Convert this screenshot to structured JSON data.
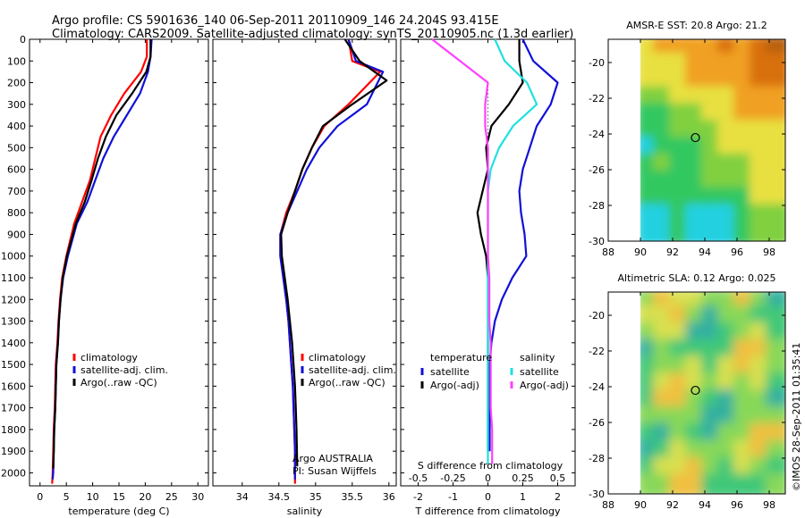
{
  "header": {
    "line1": "Argo profile: CS 5901636_140 06-Sep-2011 20110909_146 24.204S 93.415E",
    "line2": "Climatology: CARS2009. Satellite-adjusted climatology: synTS_20110905.nc (1.3d earlier)"
  },
  "colors": {
    "climatology": "#ff0000",
    "satellite": "#1010d8",
    "argo": "#000000",
    "sal_satellite": "#20e0e0",
    "sal_argo": "#ff40ff"
  },
  "depth_axis": {
    "ticks": [
      0,
      100,
      200,
      300,
      400,
      500,
      600,
      700,
      800,
      900,
      1000,
      1100,
      1200,
      1300,
      1400,
      1500,
      1600,
      1700,
      1800,
      1900,
      2000
    ],
    "range": [
      0,
      2060
    ],
    "grid": false
  },
  "chart_data": [
    {
      "type": "line",
      "id": "temperature",
      "xlabel": "temperature (deg C)",
      "xlim": [
        -2,
        32
      ],
      "xticks": [
        0,
        5,
        10,
        15,
        20,
        25,
        30
      ],
      "legend": [
        "climatology",
        "satellite-adj. clim.",
        "Argo(..raw -QC)"
      ],
      "series": [
        {
          "name": "climatology",
          "color": "#ff0000",
          "x": [
            20.3,
            20.3,
            19.2,
            16.0,
            13.5,
            11.5,
            10.5,
            9.5,
            8.0,
            6.5,
            5.0,
            4.2,
            3.8,
            3.5,
            3.3,
            3.0,
            2.9,
            2.8,
            2.6,
            2.5,
            2.4,
            2.3
          ],
          "y": [
            0,
            80,
            150,
            250,
            350,
            450,
            550,
            650,
            750,
            850,
            1000,
            1100,
            1200,
            1300,
            1400,
            1500,
            1600,
            1700,
            1800,
            1900,
            2000,
            2050
          ]
        },
        {
          "name": "satellite-adj. clim.",
          "color": "#1010d8",
          "x": [
            21.2,
            21.0,
            20.5,
            19.0,
            16.5,
            14.0,
            12.0,
            10.5,
            9.0,
            7.0,
            5.3,
            4.4,
            3.9,
            3.6,
            3.4,
            3.1,
            3.0,
            2.9,
            2.7,
            2.6,
            2.5,
            2.4
          ],
          "y": [
            0,
            80,
            150,
            250,
            350,
            450,
            550,
            650,
            750,
            850,
            1000,
            1100,
            1200,
            1300,
            1400,
            1500,
            1600,
            1700,
            1800,
            1900,
            2000,
            2030
          ]
        },
        {
          "name": "Argo(..raw -QC)",
          "color": "#000000",
          "x": [
            21.0,
            21.0,
            20.2,
            17.5,
            14.5,
            12.5,
            11.0,
            9.8,
            8.5,
            6.8,
            5.1,
            4.3,
            3.9,
            3.6,
            3.4,
            3.1,
            3.0,
            2.9,
            2.7,
            2.6,
            2.5
          ],
          "y": [
            0,
            80,
            150,
            250,
            350,
            450,
            550,
            650,
            750,
            850,
            1000,
            1100,
            1200,
            1300,
            1400,
            1500,
            1600,
            1700,
            1800,
            1900,
            1980
          ]
        }
      ]
    },
    {
      "type": "line",
      "id": "salinity",
      "xlabel": "salinity",
      "xlim": [
        33.6,
        36.1
      ],
      "xticks": [
        34,
        34.5,
        35,
        35.5,
        36
      ],
      "legend": [
        "climatology",
        "satellite-adj. clim.",
        "Argo(..raw -QC)"
      ],
      "annotation": [
        "Argo AUSTRALIA",
        "PI: Susan Wijffels"
      ],
      "series": [
        {
          "name": "climatology",
          "color": "#ff0000",
          "x": [
            35.45,
            35.5,
            35.88,
            35.45,
            35.12,
            34.95,
            34.82,
            34.72,
            34.6,
            34.52,
            34.52,
            34.56,
            34.6,
            34.63,
            34.65,
            34.67,
            34.69,
            34.7,
            34.71,
            34.72,
            34.72
          ],
          "y": [
            0,
            100,
            150,
            300,
            400,
            500,
            600,
            700,
            800,
            900,
            1000,
            1100,
            1200,
            1300,
            1400,
            1500,
            1600,
            1700,
            1800,
            1900,
            2050
          ]
        },
        {
          "name": "satellite-adj. clim.",
          "color": "#1010d8",
          "x": [
            35.45,
            35.55,
            35.92,
            35.7,
            35.3,
            35.05,
            34.88,
            34.75,
            34.62,
            34.52,
            34.52,
            34.56,
            34.6,
            34.63,
            34.65,
            34.67,
            34.69,
            34.7,
            34.71,
            34.72,
            34.72
          ],
          "y": [
            0,
            100,
            150,
            300,
            400,
            500,
            600,
            700,
            800,
            900,
            1000,
            1100,
            1200,
            1300,
            1400,
            1500,
            1600,
            1700,
            1800,
            1900,
            2030
          ]
        },
        {
          "name": "Argo(..raw -QC)",
          "color": "#000000",
          "x": [
            35.4,
            35.6,
            35.97,
            35.5,
            35.1,
            34.95,
            34.82,
            34.72,
            34.62,
            34.53,
            34.54,
            34.58,
            34.62,
            34.65,
            34.68,
            34.7,
            34.72,
            34.73,
            34.74,
            34.75
          ],
          "y": [
            0,
            100,
            190,
            300,
            400,
            500,
            600,
            700,
            800,
            900,
            1000,
            1100,
            1200,
            1300,
            1400,
            1500,
            1600,
            1700,
            1800,
            1970
          ]
        }
      ]
    },
    {
      "type": "line",
      "id": "difference",
      "xlabel": "T difference from climatology",
      "xlim": [
        -2.5,
        2.5
      ],
      "xticks": [
        -2,
        -1,
        0,
        1,
        2
      ],
      "top_label": "S difference from climatology",
      "top_ticks": [
        "-0.5",
        "-0.25",
        "0",
        "0.25",
        "0.5"
      ],
      "top_tick_values": [
        -0.5,
        -0.25,
        0,
        0.25,
        0.5
      ],
      "legend_temperature_title": "temperature",
      "legend_salinity_title": "salinity",
      "legend": [
        "satellite",
        "Argo(-adj)",
        "satellite",
        "Argo(-adj)"
      ],
      "series": [
        {
          "name": "temperature satellite",
          "color": "#1010d8",
          "x": [
            1.0,
            1.3,
            2.0,
            1.8,
            1.4,
            1.2,
            1.0,
            0.9,
            0.95,
            1.05,
            1.1,
            0.7,
            0.4,
            0.2,
            0.1,
            0.05,
            0.05,
            0.05,
            0.05,
            0.05
          ],
          "y": [
            0,
            100,
            200,
            300,
            400,
            500,
            600,
            700,
            800,
            900,
            1000,
            1100,
            1200,
            1300,
            1400,
            1500,
            1600,
            1700,
            1800,
            1900
          ]
        },
        {
          "name": "temperature Argo(-adj)",
          "color": "#000000",
          "x": [
            0.9,
            0.9,
            1.0,
            0.6,
            0.1,
            -0.05,
            0.0,
            -0.15,
            -0.3,
            -0.2,
            -0.05,
            0.0,
            0.0,
            0.0,
            0.0,
            0.0,
            0.0,
            0.0,
            0.0
          ],
          "y": [
            0,
            100,
            200,
            300,
            400,
            500,
            600,
            700,
            800,
            900,
            1000,
            1100,
            1200,
            1300,
            1400,
            1500,
            1600,
            1700,
            1900
          ]
        },
        {
          "name": "salinity satellite",
          "color": "#20e0e0",
          "x": [
            0.05,
            0.12,
            0.28,
            0.35,
            0.18,
            0.08,
            0.02,
            0.0,
            0.0,
            0.0,
            0.0,
            0.0,
            0.0,
            0.0,
            0.0,
            0.0,
            0.0,
            0.0,
            0.0,
            0.0
          ],
          "y": [
            0,
            100,
            200,
            300,
            400,
            500,
            600,
            700,
            800,
            900,
            1000,
            1100,
            1200,
            1300,
            1400,
            1500,
            1600,
            1700,
            1800,
            1960
          ]
        },
        {
          "name": "salinity Argo(-adj)",
          "color": "#ff40ff",
          "x": [
            -0.4,
            -0.2,
            0.0,
            -0.02,
            -0.02,
            0.0,
            0.0,
            0.0,
            0.0,
            0.0,
            0.0,
            0.01,
            0.01,
            0.01,
            0.02,
            0.02,
            0.02,
            0.02,
            0.03,
            0.03
          ],
          "y": [
            0,
            100,
            200,
            300,
            400,
            500,
            600,
            700,
            800,
            900,
            1000,
            1100,
            1200,
            1300,
            1400,
            1500,
            1600,
            1700,
            1800,
            1960
          ]
        }
      ]
    },
    {
      "type": "heatmap",
      "id": "sst_map",
      "title": "AMSR-E SST: 20.8  Argo: 21.2",
      "xlim": [
        88,
        99
      ],
      "ylim": [
        -30,
        -18.7
      ],
      "xticks": [
        88,
        90,
        92,
        94,
        96,
        98
      ],
      "yticks": [
        -20,
        -22,
        -24,
        -26,
        -28,
        -30
      ],
      "data_lon_min": 90,
      "marker": {
        "lon": 93.415,
        "lat": -24.204
      }
    },
    {
      "type": "heatmap",
      "id": "sla_map",
      "title": "Altimetric SLA: 0.12  Argo: 0.025",
      "xlim": [
        88,
        99
      ],
      "ylim": [
        -30,
        -18.7
      ],
      "xticks": [
        88,
        90,
        92,
        94,
        96,
        98
      ],
      "yticks": [
        -20,
        -22,
        -24,
        -26,
        -28,
        -30
      ],
      "data_lon_min": 90,
      "marker": {
        "lon": 93.415,
        "lat": -24.204
      }
    }
  ],
  "credit": "©IMOS 28-Sep-2011 01:35:41"
}
